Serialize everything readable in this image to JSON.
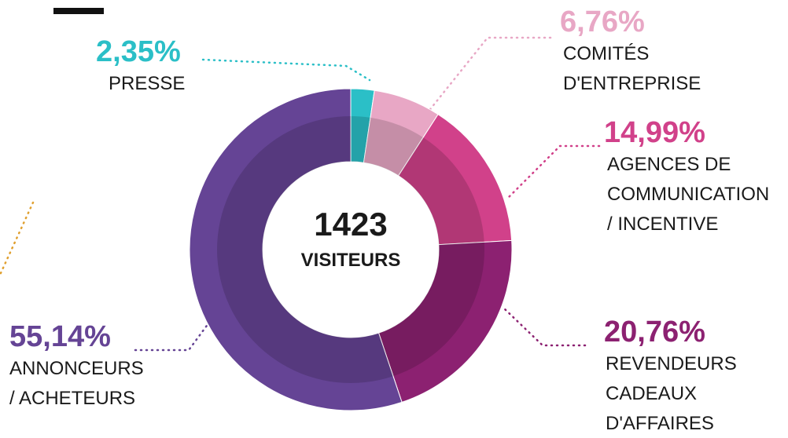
{
  "chart_data": {
    "type": "donut",
    "categories": [
      "PRESSE",
      "COMITÉS\nD'ENTREPRISE",
      "AGENCES DE\nCOMMUNICATION\n/ INCENTIVE",
      "REVENDEURS\nCADEAUX\nD'AFFAIRES",
      "ANNONCEURS\n/ ACHETEURS"
    ],
    "values": [
      2.35,
      6.76,
      14.99,
      20.76,
      55.14
    ],
    "value_labels": [
      "2,35%",
      "6,76%",
      "14,99%",
      "20,76%",
      "55,14%"
    ],
    "colors": [
      "#2bbfc7",
      "#e8a7c5",
      "#d1418a",
      "#8c2171",
      "#654495"
    ],
    "total": 1423,
    "total_label": "VISITEURS"
  }
}
